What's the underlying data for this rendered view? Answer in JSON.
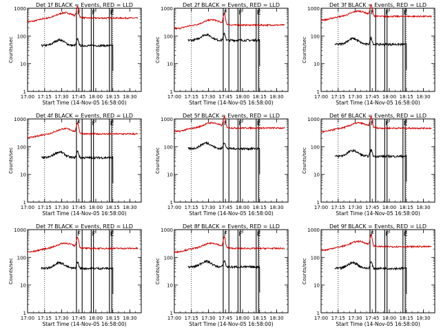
{
  "chart_data": {
    "type": "line",
    "layout": "3x3 grid",
    "y_scale": "log",
    "ylim": [
      1,
      1000
    ],
    "y_ticks": [
      "1",
      "10",
      "100",
      "1000"
    ],
    "ylabel": "Counts/sec",
    "xlim": [
      "17:00",
      "18:40"
    ],
    "x_ticks": [
      "17:00",
      "17:15",
      "17:30",
      "17:45",
      "18:00",
      "18:15",
      "18:30"
    ],
    "xlabel": "Start Time (14-Nov-05 16:58:00)",
    "dotted_vertical_lines": [
      "17:15",
      "18:15"
    ],
    "solid_vertical_lines": [
      "17:43",
      "17:48",
      "17:56",
      "17:58",
      "18:12",
      "18:14"
    ],
    "interval_markers": [
      {
        "label": "F",
        "time": "17:43"
      },
      {
        "label": "F",
        "time": "17:56"
      },
      {
        "label": "E",
        "time": "18:12"
      }
    ],
    "panels": [
      {
        "title": "Det 1f BLACK = Events, RED = LLD",
        "red_level": 320,
        "black_level": 45,
        "red_peak": 600,
        "black_peak": 75
      },
      {
        "title": "Det 2f BLACK = Events, RED = LLD",
        "red_level": 190,
        "black_level": 70,
        "red_peak": 320,
        "black_peak": 90
      },
      {
        "title": "Det 3f BLACK = Events, RED = LLD",
        "red_level": 320,
        "black_level": 50,
        "red_peak": 750,
        "black_peak": 90
      },
      {
        "title": "Det 4f BLACK = Events, RED = LLD",
        "red_level": 200,
        "black_level": 40,
        "red_peak": 400,
        "black_peak": 70
      },
      {
        "title": "Det 5f BLACK = Events, RED = LLD",
        "red_level": 330,
        "black_level": 85,
        "red_peak": 650,
        "black_peak": 130
      },
      {
        "title": "Det 6f BLACK = Events, RED = LLD",
        "red_level": 280,
        "black_level": 45,
        "red_peak": 700,
        "black_peak": 80
      },
      {
        "title": "Det 7f BLACK = Events, RED = LLD",
        "red_level": 140,
        "black_level": 40,
        "red_peak": 300,
        "black_peak": 70
      },
      {
        "title": "Det 8f BLACK = Events, RED = LLD",
        "red_level": 170,
        "black_level": 45,
        "red_peak": 260,
        "black_peak": 70
      },
      {
        "title": "Det 9f BLACK = Events, RED = LLD",
        "red_level": 160,
        "black_level": 40,
        "red_peak": 350,
        "black_peak": 70
      }
    ],
    "series": [
      {
        "name": "BLACK = Events",
        "color": "#000000"
      },
      {
        "name": "RED = LLD",
        "color": "#d40000"
      }
    ]
  }
}
